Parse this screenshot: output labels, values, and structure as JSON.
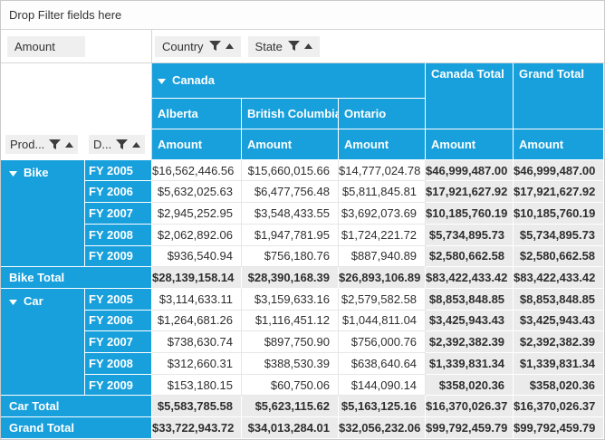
{
  "theme": {
    "header_blue": "#18a0dc",
    "summary_bg": "#ebebeb",
    "field_button_bg": "#efefef",
    "grid_line": "#e6e6e6",
    "chrome_line": "#d6d6d6",
    "text_dark": "#333333",
    "text_light": "#ffffff"
  },
  "icons": {
    "filter": "funnel-icon",
    "sort": "sort-ascending-icon",
    "expand": "collapse-arrow-icon"
  },
  "filter_bar": {
    "label": "Drop Filter fields here"
  },
  "fields": {
    "value_field": "Amount",
    "column_fields": [
      {
        "label": "Country"
      },
      {
        "label": "State"
      }
    ],
    "row_fields": [
      {
        "label": "Prod..."
      },
      {
        "label": "D..."
      }
    ]
  },
  "column_headers": {
    "group": "Canada",
    "group_expanded": true,
    "states": [
      "Alberta",
      "British Columbia",
      "Ontario"
    ],
    "totals": [
      "Canada Total",
      "Grand Total"
    ],
    "measure": "Amount"
  },
  "rows": [
    {
      "type": "data",
      "group": "Bike",
      "group_expanded": true,
      "group_span": 5,
      "period": "FY 2005",
      "values": [
        "$16,562,446.56",
        "$15,660,015.66",
        "$14,777,024.78",
        "$46,999,487.00",
        "$46,999,487.00"
      ]
    },
    {
      "type": "data",
      "period": "FY 2006",
      "values": [
        "$5,632,025.63",
        "$6,477,756.48",
        "$5,811,845.81",
        "$17,921,627.92",
        "$17,921,627.92"
      ]
    },
    {
      "type": "data",
      "period": "FY 2007",
      "values": [
        "$2,945,252.95",
        "$3,548,433.55",
        "$3,692,073.69",
        "$10,185,760.19",
        "$10,185,760.19"
      ]
    },
    {
      "type": "data",
      "period": "FY 2008",
      "values": [
        "$2,062,892.06",
        "$1,947,781.95",
        "$1,724,221.72",
        "$5,734,895.73",
        "$5,734,895.73"
      ]
    },
    {
      "type": "data",
      "period": "FY 2009",
      "values": [
        "$936,540.94",
        "$756,180.76",
        "$887,940.89",
        "$2,580,662.58",
        "$2,580,662.58"
      ]
    },
    {
      "type": "total",
      "label": "Bike Total",
      "values": [
        "$28,139,158.14",
        "$28,390,168.39",
        "$26,893,106.89",
        "$83,422,433.42",
        "$83,422,433.42"
      ]
    },
    {
      "type": "data",
      "group": "Car",
      "group_expanded": true,
      "group_span": 5,
      "period": "FY 2005",
      "values": [
        "$3,114,633.11",
        "$3,159,633.16",
        "$2,579,582.58",
        "$8,853,848.85",
        "$8,853,848.85"
      ]
    },
    {
      "type": "data",
      "period": "FY 2006",
      "values": [
        "$1,264,681.26",
        "$1,116,451.12",
        "$1,044,811.04",
        "$3,425,943.43",
        "$3,425,943.43"
      ]
    },
    {
      "type": "data",
      "period": "FY 2007",
      "values": [
        "$738,630.74",
        "$897,750.90",
        "$756,000.76",
        "$2,392,382.39",
        "$2,392,382.39"
      ]
    },
    {
      "type": "data",
      "period": "FY 2008",
      "values": [
        "$312,660.31",
        "$388,530.39",
        "$638,640.64",
        "$1,339,831.34",
        "$1,339,831.34"
      ]
    },
    {
      "type": "data",
      "period": "FY 2009",
      "values": [
        "$153,180.15",
        "$60,750.06",
        "$144,090.14",
        "$358,020.36",
        "$358,020.36"
      ]
    },
    {
      "type": "total",
      "label": "Car Total",
      "values": [
        "$5,583,785.58",
        "$5,623,115.62",
        "$5,163,125.16",
        "$16,370,026.37",
        "$16,370,026.37"
      ]
    },
    {
      "type": "total",
      "label": "Grand Total",
      "values": [
        "$33,722,943.72",
        "$34,013,284.01",
        "$32,056,232.06",
        "$99,792,459.79",
        "$99,792,459.79"
      ]
    }
  ]
}
